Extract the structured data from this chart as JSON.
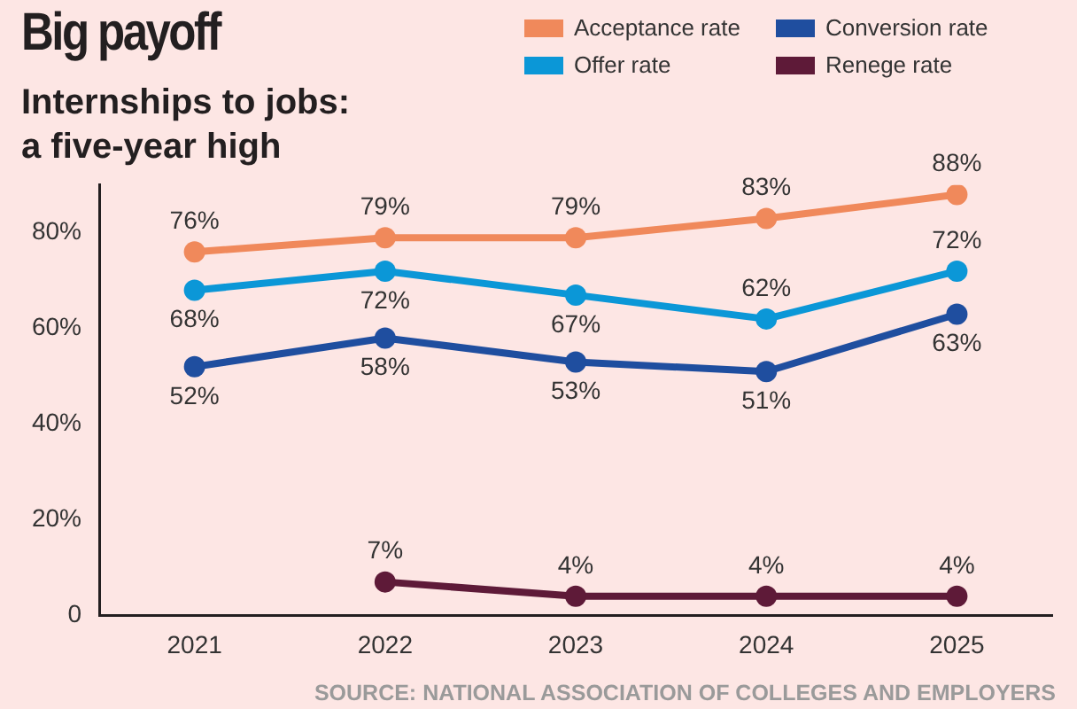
{
  "chart_data": {
    "type": "line",
    "title": "Big payoff",
    "subtitle": "Internships to jobs: a five-year high",
    "categories": [
      "2021",
      "2022",
      "2023",
      "2024",
      "2025"
    ],
    "series": [
      {
        "name": "Acceptance rate",
        "color": "#f0895b",
        "values": [
          76,
          79,
          79,
          83,
          88
        ],
        "value_labels": [
          "76%",
          "79%",
          "79%",
          "83%",
          "88%"
        ]
      },
      {
        "name": "Conversion rate",
        "color": "#1f4e9f",
        "values": [
          52,
          58,
          53,
          51,
          63
        ],
        "value_labels": [
          "52%",
          "58%",
          "53%",
          "51%",
          "63%"
        ]
      },
      {
        "name": "Offer rate",
        "color": "#0b97d7",
        "values": [
          68,
          72,
          67,
          62,
          72
        ],
        "value_labels": [
          "68%",
          "72%",
          "67%",
          "62%",
          "72%"
        ]
      },
      {
        "name": "Renege rate",
        "color": "#5e1a38",
        "values": [
          null,
          7,
          4,
          4,
          4
        ],
        "value_labels": [
          null,
          "7%",
          "4%",
          "4%",
          "4%"
        ]
      }
    ],
    "ylim": [
      0,
      90
    ],
    "yticks": [
      {
        "value": 0,
        "label": "0"
      },
      {
        "value": 20,
        "label": "20%"
      },
      {
        "value": 40,
        "label": "40%"
      },
      {
        "value": 60,
        "label": "60%"
      },
      {
        "value": 80,
        "label": "80%"
      }
    ],
    "grid": false,
    "legend": "top right",
    "marker": "circle",
    "line_style": "solid",
    "annotations": [
      "SOURCE: NATIONAL ASSOCIATION OF COLLEGES AND EMPLOYERS"
    ]
  }
}
